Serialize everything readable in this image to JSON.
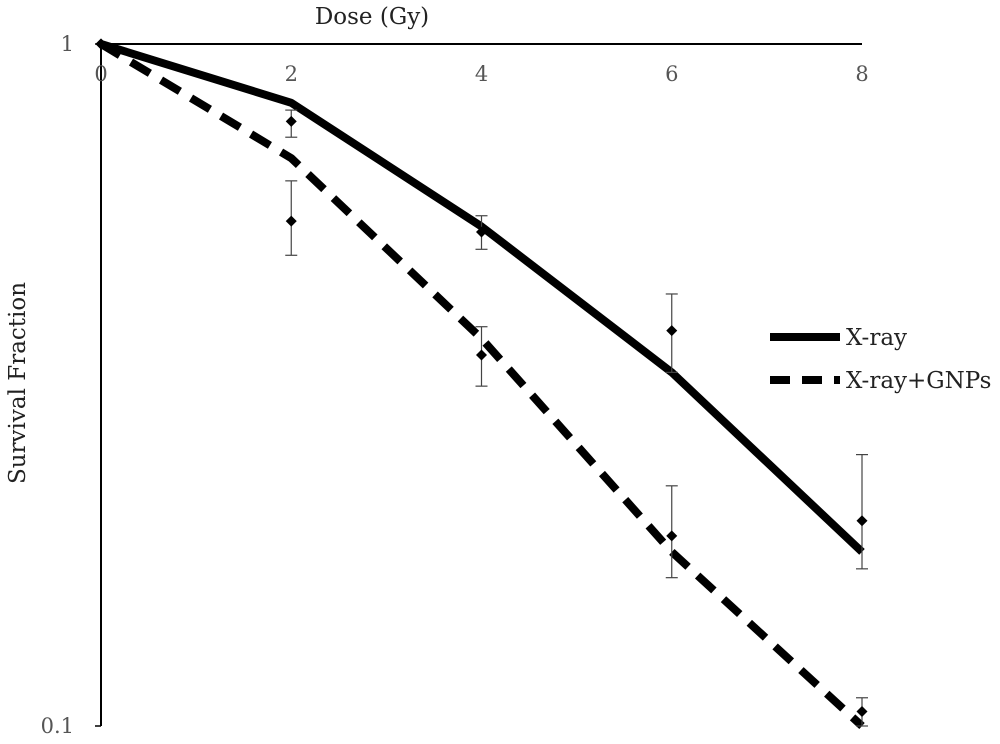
{
  "chart_data": {
    "type": "line",
    "title": "",
    "xlabel": "Dose (Gy)",
    "ylabel": "Survival Fraction",
    "x_ticks": [
      "0",
      "2",
      "4",
      "6",
      "8"
    ],
    "y_ticks": [
      "1",
      "0.1"
    ],
    "xlim": [
      0,
      8
    ],
    "ylim": [
      0.1,
      1
    ],
    "y_scale": "log",
    "x_axis_position": "top",
    "grid": false,
    "legend_position": "right",
    "series": [
      {
        "name": "X-ray",
        "style": "solid",
        "color": "#000000",
        "fit_x": [
          0,
          2,
          4,
          6,
          8
        ],
        "fit_y": [
          1.0,
          0.82,
          0.54,
          0.33,
          0.18
        ],
        "points": [
          {
            "x": 0,
            "y": 1.0,
            "lo": 1.0,
            "hi": 1.0
          },
          {
            "x": 2,
            "y": 0.77,
            "lo": 0.73,
            "hi": 0.8
          },
          {
            "x": 4,
            "y": 0.53,
            "lo": 0.5,
            "hi": 0.56
          },
          {
            "x": 6,
            "y": 0.38,
            "lo": 0.33,
            "hi": 0.43
          },
          {
            "x": 8,
            "y": 0.2,
            "lo": 0.17,
            "hi": 0.25
          }
        ]
      },
      {
        "name": "X-ray+GNPs",
        "style": "dashed",
        "color": "#000000",
        "fit_x": [
          0,
          2,
          4,
          6,
          8
        ],
        "fit_y": [
          1.0,
          0.68,
          0.37,
          0.18,
          0.1
        ],
        "points": [
          {
            "x": 0,
            "y": 1.0,
            "lo": 1.0,
            "hi": 1.0
          },
          {
            "x": 2,
            "y": 0.55,
            "lo": 0.49,
            "hi": 0.63
          },
          {
            "x": 4,
            "y": 0.35,
            "lo": 0.315,
            "hi": 0.385
          },
          {
            "x": 6,
            "y": 0.19,
            "lo": 0.165,
            "hi": 0.225
          },
          {
            "x": 8,
            "y": 0.105,
            "lo": 0.1,
            "hi": 0.11
          }
        ]
      }
    ]
  }
}
